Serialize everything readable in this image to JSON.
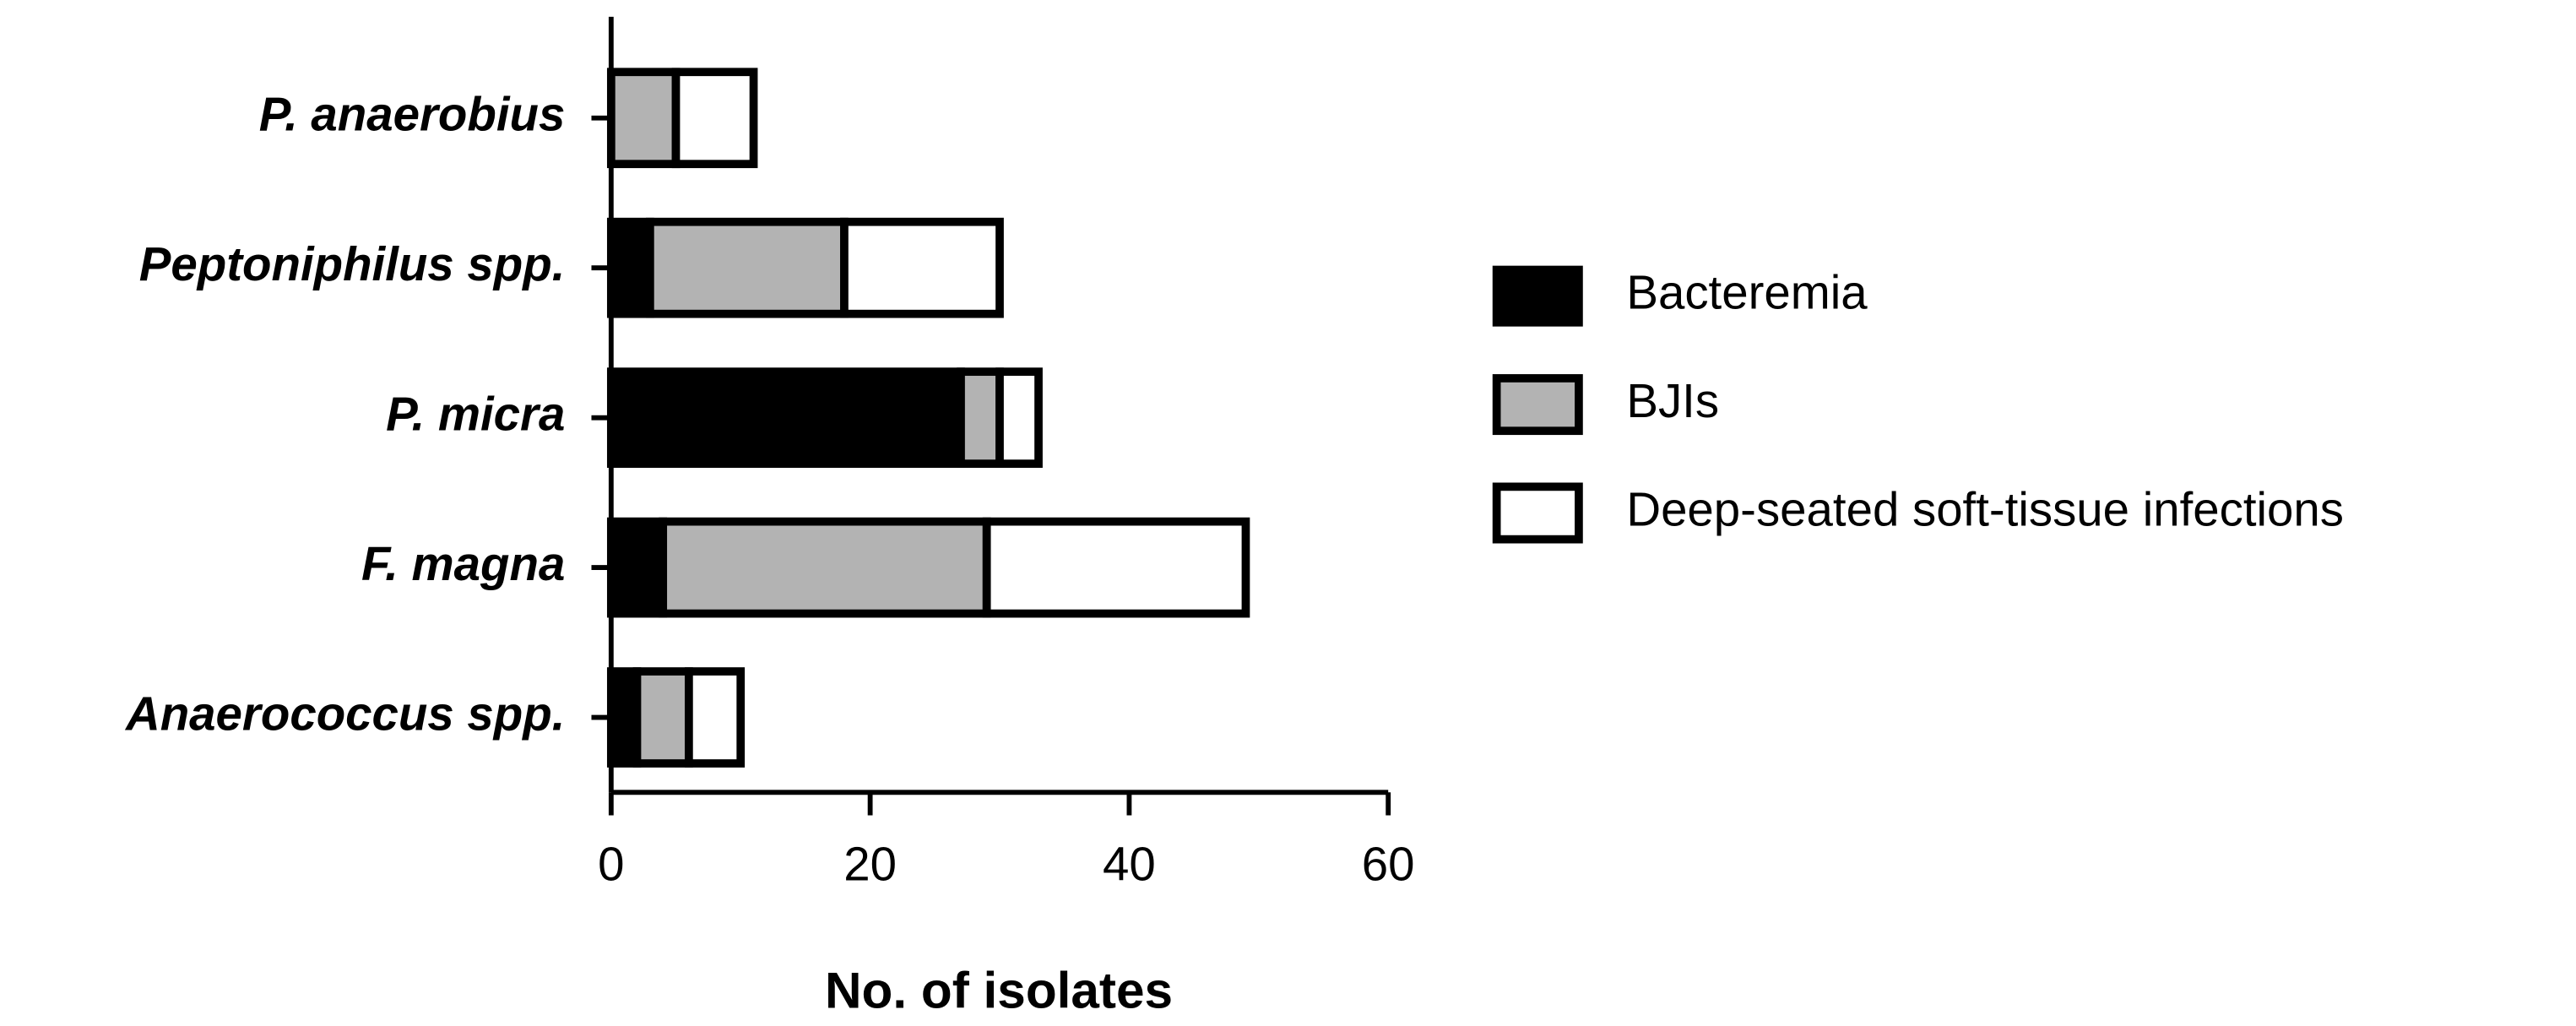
{
  "chart_data": {
    "type": "stacked-bar-horizontal",
    "x_label": "No. of isolates",
    "categories": [
      "P. anaerobius",
      "Peptoniphilus spp.",
      "P. micra",
      "F. magna",
      "Anaerococcus spp."
    ],
    "series": [
      {
        "name": "Bacteremia",
        "color": "#000000",
        "values": [
          0,
          3,
          27,
          4,
          2
        ]
      },
      {
        "name": "BJIs",
        "color": "#b3b3b3",
        "values": [
          5,
          15,
          3,
          25,
          4
        ]
      },
      {
        "name": "Deep-seated soft-tissue infections",
        "color": "#ffffff",
        "values": [
          6,
          12,
          3,
          20,
          4
        ]
      }
    ],
    "xlim": [
      0,
      60
    ],
    "xticks": [
      0,
      20,
      40,
      60
    ]
  }
}
